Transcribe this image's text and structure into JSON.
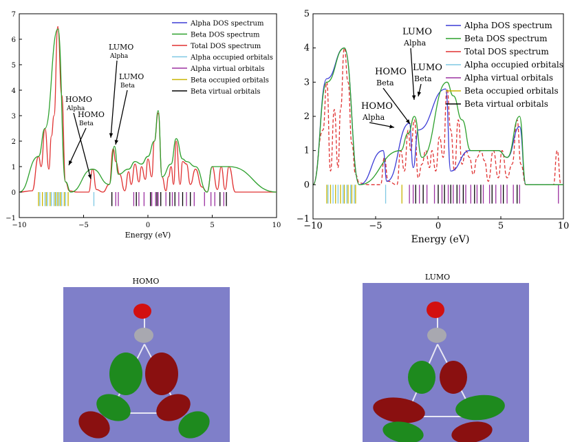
{
  "chart_data": [
    {
      "type": "line",
      "xlabel": "Energy (eV)",
      "xlim": [
        -10,
        10
      ],
      "ylim": [
        -1,
        7
      ],
      "x_ticks": [
        -10,
        -5,
        0,
        5,
        10
      ],
      "y_ticks": [
        -1,
        0,
        1,
        2,
        3,
        4,
        5,
        6,
        7
      ],
      "legend_position": "top-right",
      "legend": [
        {
          "name": "Alpha DOS spectrum",
          "color": "#3b3bd6"
        },
        {
          "name": "Beta DOS spectrum",
          "color": "#2ca02c"
        },
        {
          "name": "Total DOS spectrum",
          "color": "#e03030"
        },
        {
          "name": "Alpha occupied orbitals",
          "color": "#7ec8e3"
        },
        {
          "name": "Alpha virtual orbitals",
          "color": "#9b30a0"
        },
        {
          "name": "Beta occupied orbitals",
          "color": "#c8b400"
        },
        {
          "name": "Beta virtual orbitals",
          "color": "#000000"
        }
      ],
      "series": [
        {
          "name": "Total DOS spectrum",
          "color": "#e03030",
          "x": [
            -10,
            -9.0,
            -8.5,
            -8.3,
            -8.0,
            -7.7,
            -7.5,
            -7.3,
            -7.0,
            -6.7,
            -6.4,
            -6.1,
            -5.5,
            -4.6,
            -4.3,
            -4.0,
            -3.5,
            -3.0,
            -2.7,
            -2.5,
            -2.2,
            -1.8,
            -1.5,
            -1.3,
            -1.0,
            -0.7,
            -0.5,
            -0.2,
            0.0,
            0.3,
            0.5,
            0.8,
            1.1,
            1.4,
            1.6,
            1.8,
            2.0,
            2.2,
            2.5,
            2.7,
            3.0,
            3.3,
            3.7,
            4.2,
            4.6,
            5.0,
            5.4,
            5.7,
            6.0,
            6.3,
            6.8,
            10
          ],
          "y": [
            0,
            0.05,
            1.4,
            1.0,
            2.5,
            0.9,
            2.2,
            3.0,
            6.5,
            3.8,
            0.4,
            0.05,
            0,
            0,
            0.9,
            0.1,
            0,
            0.3,
            1.7,
            1.2,
            0.7,
            0.05,
            0.8,
            0.3,
            1.1,
            0.4,
            1.0,
            0.5,
            1.3,
            0.6,
            2.0,
            3.1,
            0.6,
            0.05,
            0.6,
            1.0,
            0.3,
            2.0,
            0.3,
            1.2,
            1.1,
            0.3,
            0.9,
            0.2,
            0,
            1.0,
            0.1,
            1.0,
            0.1,
            1.0,
            0,
            0
          ]
        },
        {
          "name": "Beta DOS spectrum",
          "color": "#2ca02c",
          "x": [
            -10,
            -8.5,
            -8.0,
            -7.0,
            -6.4,
            -6.0,
            -4.3,
            -3.0,
            -2.6,
            -2.3,
            -1.5,
            -1.0,
            -0.5,
            0.0,
            0.5,
            0.8,
            1.1,
            1.8,
            2.2,
            2.7,
            3.0,
            3.7,
            4.6,
            5.0,
            5.7,
            6.3,
            10
          ],
          "y": [
            0,
            1.4,
            2.5,
            6.4,
            0.4,
            0,
            0.9,
            0.3,
            1.8,
            0.7,
            0.9,
            1.2,
            1.1,
            1.4,
            2.0,
            3.2,
            0.6,
            1.1,
            2.1,
            1.3,
            1.2,
            1.0,
            0,
            1.0,
            1.0,
            1.0,
            0
          ]
        }
      ],
      "orbital_lines": [
        {
          "name": "Alpha occupied orbitals",
          "x": [
            -8.4,
            -8.0,
            -7.8,
            -7.5,
            -7.3,
            -7.1,
            -6.9,
            -6.7,
            -6.4,
            -4.2
          ]
        },
        {
          "name": "Beta occupied orbitals",
          "x": [
            -8.5,
            -8.2,
            -7.9,
            -7.6,
            -7.2,
            -7.0,
            -6.8,
            -6.5,
            -6.2
          ]
        },
        {
          "name": "Alpha virtual orbitals",
          "x": [
            -2.5,
            -2.3,
            -1.1,
            -0.7,
            -0.3,
            0.3,
            0.6,
            0.8,
            1.4,
            1.9,
            2.4,
            3.0,
            3.6,
            4.4,
            4.9,
            5.2,
            5.9
          ]
        },
        {
          "name": "Beta virtual orbitals",
          "x": [
            -2.8,
            -0.9,
            0.2,
            0.7,
            1.0,
            1.7,
            2.1,
            2.7,
            3.3,
            5.6,
            6.1
          ]
        }
      ],
      "annotations": [
        {
          "text": "HOMO",
          "sub": "Alpha"
        },
        {
          "text": "HOMO",
          "sub": "Beta"
        },
        {
          "text": "LUMO",
          "sub": "Alpha"
        },
        {
          "text": "LUMO",
          "sub": "Beta"
        }
      ]
    },
    {
      "type": "line",
      "xlabel": "Energy (eV)",
      "xlim": [
        -10,
        10
      ],
      "ylim": [
        -1,
        5
      ],
      "x_ticks": [
        -10,
        -5,
        0,
        5,
        10
      ],
      "y_ticks": [
        -1,
        0,
        1,
        2,
        3,
        4,
        5
      ],
      "legend_position": "top-right",
      "legend": [
        {
          "name": "Alpha DOS spectrum",
          "color": "#3b3bd6"
        },
        {
          "name": "Beta DOS spectrum",
          "color": "#2ca02c"
        },
        {
          "name": "Total DOS spectrum",
          "color": "#e03030"
        },
        {
          "name": "Alpha occupied orbitals",
          "color": "#7ec8e3"
        },
        {
          "name": "Alpha virtual orbitals",
          "color": "#9b30a0"
        },
        {
          "name": "Beta occupied orbitals",
          "color": "#c8b400"
        },
        {
          "name": "Beta virtual orbitals",
          "color": "#000000"
        }
      ],
      "series": [
        {
          "name": "Total DOS spectrum",
          "color": "#e03030",
          "x": [
            -10,
            -9.2,
            -8.9,
            -8.6,
            -8.3,
            -8.0,
            -7.8,
            -7.5,
            -7.2,
            -6.9,
            -6.6,
            -6.3,
            -5.5,
            -4.6,
            -4.3,
            -4.0,
            -3.3,
            -3.0,
            -2.7,
            -2.4,
            -2.2,
            -1.9,
            -1.6,
            -1.3,
            -1.0,
            -0.7,
            -0.5,
            -0.2,
            0.1,
            0.4,
            0.7,
            1.0,
            1.3,
            1.6,
            1.9,
            2.2,
            2.5,
            2.8,
            3.1,
            3.4,
            3.7,
            4.0,
            4.4,
            4.8,
            5.1,
            5.5,
            5.9,
            6.3,
            6.6,
            7.0,
            9.2,
            9.5,
            9.8,
            10
          ],
          "y": [
            0,
            1.6,
            3.0,
            0.4,
            2.2,
            0.5,
            2.2,
            4.0,
            3.0,
            1.2,
            0.3,
            0.05,
            0,
            0,
            0.8,
            0.1,
            0,
            1.0,
            0.4,
            1.6,
            1.0,
            1.9,
            0.2,
            0.6,
            1.0,
            0.5,
            1.0,
            0.4,
            1.4,
            0.8,
            2.8,
            1.6,
            0.4,
            1.9,
            0.6,
            1.0,
            0.8,
            0.3,
            0.8,
            1.0,
            0.7,
            0.1,
            1.0,
            0.2,
            1.0,
            0.2,
            0.6,
            1.9,
            0.6,
            0,
            0,
            1.0,
            0,
            0
          ]
        },
        {
          "name": "Alpha DOS spectrum",
          "color": "#3b3bd6",
          "x": [
            -10,
            -8.9,
            -7.5,
            -6.3,
            -4.4,
            -4.1,
            -2.3,
            -2.0,
            -1.6,
            0.6,
            1.0,
            2.5,
            4.0,
            4.8,
            5.5,
            6.5,
            7.0,
            10
          ],
          "y": [
            0,
            3.1,
            4.0,
            0,
            1.0,
            0.1,
            1.8,
            0.5,
            1.6,
            2.8,
            0.4,
            1.0,
            1.0,
            1.0,
            0.8,
            1.7,
            0,
            0
          ]
        },
        {
          "name": "Beta DOS spectrum",
          "color": "#2ca02c",
          "x": [
            -10,
            -8.9,
            -7.5,
            -6.3,
            -3.0,
            -2.4,
            -1.9,
            -1.3,
            0.7,
            1.2,
            1.9,
            2.6,
            4.0,
            4.8,
            5.5,
            6.5,
            7.0,
            10
          ],
          "y": [
            0,
            3.0,
            4.0,
            0,
            1.0,
            1.5,
            2.0,
            0.8,
            3.0,
            2.6,
            1.9,
            1.0,
            1.0,
            1.0,
            0.8,
            2.0,
            0,
            0
          ]
        }
      ],
      "orbital_lines": [
        {
          "name": "Alpha occupied orbitals",
          "x": [
            -8.8,
            -8.4,
            -8.0,
            -7.6,
            -7.3,
            -7.0,
            -6.7,
            -4.2
          ]
        },
        {
          "name": "Beta occupied orbitals",
          "x": [
            -8.9,
            -8.6,
            -8.2,
            -7.8,
            -7.5,
            -7.2,
            -6.9,
            -6.6,
            -2.9
          ]
        },
        {
          "name": "Alpha virtual orbitals",
          "x": [
            -2.3,
            -2.0,
            -1.5,
            -0.9,
            -0.3,
            0.3,
            0.8,
            1.2,
            1.7,
            2.2,
            2.6,
            3.1,
            3.6,
            4.1,
            4.6,
            5.0,
            5.5,
            6.0,
            6.5,
            9.6
          ]
        },
        {
          "name": "Beta virtual orbitals",
          "x": [
            -1.8,
            -1.2,
            0.0,
            0.5,
            1.0,
            1.5,
            2.0,
            2.9,
            3.4,
            4.3,
            5.2,
            6.3
          ]
        }
      ],
      "annotations": [
        {
          "text": "LUMO",
          "sub": "Alpha"
        },
        {
          "text": "HOMO",
          "sub": "Beta"
        },
        {
          "text": "LUMO",
          "sub": "Beta"
        },
        {
          "text": "HOMO",
          "sub": "Alpha"
        }
      ]
    }
  ],
  "images": [
    {
      "caption": "HOMO",
      "description_icon": "molecular-orbital-homo"
    },
    {
      "caption": "LUMO",
      "description_icon": "molecular-orbital-lumo"
    }
  ]
}
